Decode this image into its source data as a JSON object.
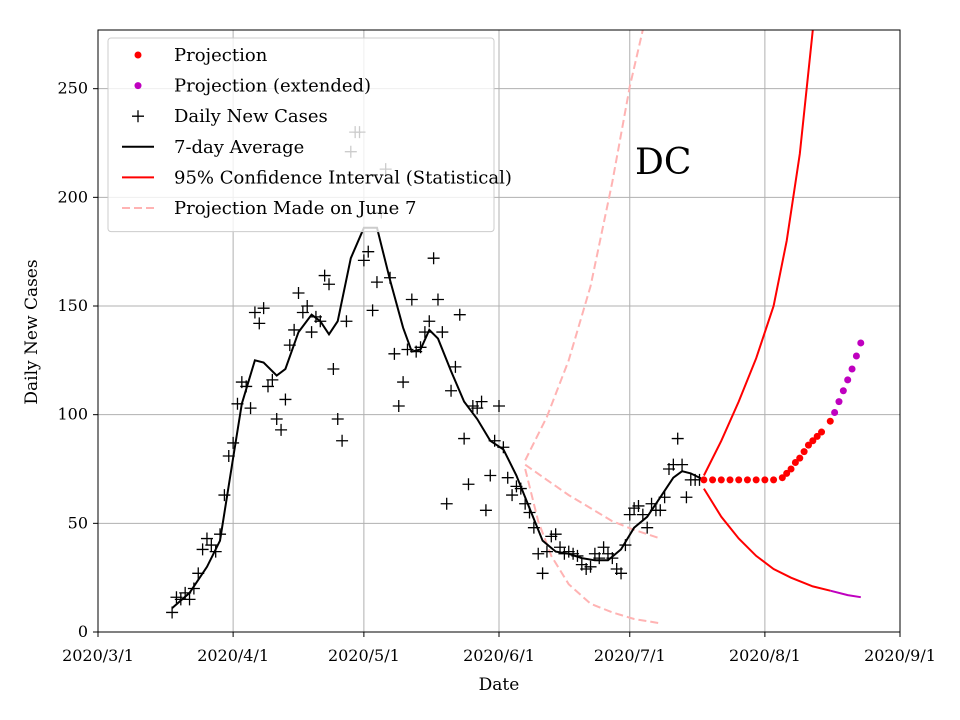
{
  "chart_data": {
    "type": "line",
    "title": "",
    "annotation": "DC",
    "xlabel": "Date",
    "ylabel": "Daily New Cases",
    "x_ticks": [
      "2020/3/1",
      "2020/4/1",
      "2020/5/1",
      "2020/6/1",
      "2020/7/1",
      "2020/8/1",
      "2020/9/1"
    ],
    "y_ticks": [
      0,
      50,
      100,
      150,
      200,
      250
    ],
    "xlim": [
      "2020-03-01",
      "2020-09-01"
    ],
    "ylim": [
      0,
      277
    ],
    "grid": true,
    "legend_position": "top-left",
    "colors": {
      "projection": "#ff0000",
      "projection_extended": "#bf00bf",
      "daily": "#000000",
      "avg": "#000000",
      "ci": "#ff0000",
      "june7": "#ffb3b3",
      "grid": "#b0b0b0"
    },
    "legend": [
      {
        "key": "projection",
        "label": "Projection"
      },
      {
        "key": "projection_extended",
        "label": "Projection (extended)"
      },
      {
        "key": "daily",
        "label": "Daily New Cases"
      },
      {
        "key": "avg",
        "label": "7-day Average"
      },
      {
        "key": "ci",
        "label": "95% Confidence Interval (Statistical)"
      },
      {
        "key": "june7",
        "label": "Projection Made on June 7"
      }
    ],
    "daily_new_cases": [
      [
        "2020-03-18",
        9
      ],
      [
        "2020-03-19",
        16
      ],
      [
        "2020-03-20",
        15
      ],
      [
        "2020-03-21",
        18
      ],
      [
        "2020-03-22",
        15
      ],
      [
        "2020-03-23",
        20
      ],
      [
        "2020-03-24",
        27
      ],
      [
        "2020-03-25",
        38
      ],
      [
        "2020-03-26",
        43
      ],
      [
        "2020-03-27",
        40
      ],
      [
        "2020-03-28",
        37
      ],
      [
        "2020-03-29",
        45
      ],
      [
        "2020-03-30",
        63
      ],
      [
        "2020-03-31",
        81
      ],
      [
        "2020-04-01",
        87
      ],
      [
        "2020-04-02",
        105
      ],
      [
        "2020-04-03",
        115
      ],
      [
        "2020-04-04",
        113
      ],
      [
        "2020-04-05",
        103
      ],
      [
        "2020-04-06",
        147
      ],
      [
        "2020-04-07",
        142
      ],
      [
        "2020-04-08",
        149
      ],
      [
        "2020-04-09",
        113
      ],
      [
        "2020-04-10",
        116
      ],
      [
        "2020-04-11",
        98
      ],
      [
        "2020-04-12",
        93
      ],
      [
        "2020-04-13",
        107
      ],
      [
        "2020-04-14",
        132
      ],
      [
        "2020-04-15",
        139
      ],
      [
        "2020-04-16",
        156
      ],
      [
        "2020-04-17",
        147
      ],
      [
        "2020-04-18",
        150
      ],
      [
        "2020-04-19",
        138
      ],
      [
        "2020-04-20",
        145
      ],
      [
        "2020-04-21",
        143
      ],
      [
        "2020-04-22",
        164
      ],
      [
        "2020-04-23",
        160
      ],
      [
        "2020-04-24",
        121
      ],
      [
        "2020-04-25",
        98
      ],
      [
        "2020-04-26",
        88
      ],
      [
        "2020-04-27",
        143
      ],
      [
        "2020-04-28",
        221
      ],
      [
        "2020-04-29",
        230
      ],
      [
        "2020-04-30",
        230
      ],
      [
        "2020-05-01",
        171
      ],
      [
        "2020-05-02",
        175
      ],
      [
        "2020-05-03",
        148
      ],
      [
        "2020-05-04",
        161
      ],
      [
        "2020-05-05",
        193
      ],
      [
        "2020-05-06",
        213
      ],
      [
        "2020-05-07",
        163
      ],
      [
        "2020-05-08",
        128
      ],
      [
        "2020-05-09",
        104
      ],
      [
        "2020-05-10",
        115
      ],
      [
        "2020-05-11",
        130
      ],
      [
        "2020-05-12",
        153
      ],
      [
        "2020-05-13",
        129
      ],
      [
        "2020-05-14",
        131
      ],
      [
        "2020-05-15",
        138
      ],
      [
        "2020-05-16",
        143
      ],
      [
        "2020-05-17",
        172
      ],
      [
        "2020-05-18",
        153
      ],
      [
        "2020-05-19",
        138
      ],
      [
        "2020-05-20",
        59
      ],
      [
        "2020-05-21",
        111
      ],
      [
        "2020-05-22",
        122
      ],
      [
        "2020-05-23",
        146
      ],
      [
        "2020-05-24",
        89
      ],
      [
        "2020-05-25",
        68
      ],
      [
        "2020-05-26",
        104
      ],
      [
        "2020-05-27",
        103
      ],
      [
        "2020-05-28",
        106
      ],
      [
        "2020-05-29",
        56
      ],
      [
        "2020-05-30",
        72
      ],
      [
        "2020-05-31",
        88
      ],
      [
        "2020-06-01",
        104
      ],
      [
        "2020-06-02",
        85
      ],
      [
        "2020-06-03",
        71
      ],
      [
        "2020-06-04",
        63
      ],
      [
        "2020-06-05",
        67
      ],
      [
        "2020-06-06",
        66
      ],
      [
        "2020-06-07",
        59
      ],
      [
        "2020-06-08",
        55
      ],
      [
        "2020-06-09",
        48
      ],
      [
        "2020-06-10",
        36
      ],
      [
        "2020-06-11",
        27
      ],
      [
        "2020-06-12",
        37
      ],
      [
        "2020-06-13",
        44
      ],
      [
        "2020-06-14",
        45
      ],
      [
        "2020-06-15",
        39
      ],
      [
        "2020-06-16",
        36
      ],
      [
        "2020-06-17",
        37
      ],
      [
        "2020-06-18",
        36
      ],
      [
        "2020-06-19",
        35
      ],
      [
        "2020-06-20",
        31
      ],
      [
        "2020-06-21",
        29
      ],
      [
        "2020-06-22",
        30
      ],
      [
        "2020-06-23",
        36
      ],
      [
        "2020-06-24",
        34
      ],
      [
        "2020-06-25",
        39
      ],
      [
        "2020-06-26",
        36
      ],
      [
        "2020-06-27",
        34
      ],
      [
        "2020-06-28",
        29
      ],
      [
        "2020-06-29",
        27
      ],
      [
        "2020-06-30",
        40
      ],
      [
        "2020-07-01",
        54
      ],
      [
        "2020-07-02",
        57
      ],
      [
        "2020-07-03",
        58
      ],
      [
        "2020-07-04",
        54
      ],
      [
        "2020-07-05",
        48
      ],
      [
        "2020-07-06",
        59
      ],
      [
        "2020-07-07",
        56
      ],
      [
        "2020-07-08",
        56
      ],
      [
        "2020-07-09",
        62
      ],
      [
        "2020-07-10",
        75
      ],
      [
        "2020-07-11",
        77
      ],
      [
        "2020-07-12",
        89
      ],
      [
        "2020-07-13",
        77
      ],
      [
        "2020-07-14",
        62
      ],
      [
        "2020-07-15",
        70
      ],
      [
        "2020-07-16",
        70
      ],
      [
        "2020-07-17",
        70
      ]
    ],
    "seven_day_average": [
      [
        "2020-03-18",
        11
      ],
      [
        "2020-03-22",
        18
      ],
      [
        "2020-03-26",
        30
      ],
      [
        "2020-03-29",
        42
      ],
      [
        "2020-04-01",
        80
      ],
      [
        "2020-04-03",
        105
      ],
      [
        "2020-04-06",
        125
      ],
      [
        "2020-04-08",
        124
      ],
      [
        "2020-04-11",
        118
      ],
      [
        "2020-04-13",
        121
      ],
      [
        "2020-04-16",
        138
      ],
      [
        "2020-04-19",
        146
      ],
      [
        "2020-04-21",
        143
      ],
      [
        "2020-04-23",
        137
      ],
      [
        "2020-04-25",
        143
      ],
      [
        "2020-04-28",
        172
      ],
      [
        "2020-05-01",
        186
      ],
      [
        "2020-05-04",
        186
      ],
      [
        "2020-05-07",
        162
      ],
      [
        "2020-05-10",
        140
      ],
      [
        "2020-05-12",
        129
      ],
      [
        "2020-05-14",
        130
      ],
      [
        "2020-05-16",
        139
      ],
      [
        "2020-05-18",
        135
      ],
      [
        "2020-05-21",
        120
      ],
      [
        "2020-05-24",
        106
      ],
      [
        "2020-05-27",
        98
      ],
      [
        "2020-05-30",
        88
      ],
      [
        "2020-06-02",
        84
      ],
      [
        "2020-06-05",
        72
      ],
      [
        "2020-06-08",
        57
      ],
      [
        "2020-06-11",
        42
      ],
      [
        "2020-06-14",
        37
      ],
      [
        "2020-06-17",
        36
      ],
      [
        "2020-06-20",
        34
      ],
      [
        "2020-06-23",
        33
      ],
      [
        "2020-06-26",
        33
      ],
      [
        "2020-06-29",
        38
      ],
      [
        "2020-07-02",
        48
      ],
      [
        "2020-07-05",
        53
      ],
      [
        "2020-07-08",
        62
      ],
      [
        "2020-07-11",
        71
      ],
      [
        "2020-07-13",
        74
      ],
      [
        "2020-07-15",
        73
      ],
      [
        "2020-07-18",
        70
      ]
    ],
    "projection": [
      [
        "2020-07-18",
        70
      ],
      [
        "2020-07-20",
        70
      ],
      [
        "2020-07-22",
        70
      ],
      [
        "2020-07-24",
        70
      ],
      [
        "2020-07-26",
        70
      ],
      [
        "2020-07-28",
        70
      ],
      [
        "2020-07-30",
        70
      ],
      [
        "2020-08-01",
        70
      ],
      [
        "2020-08-03",
        70
      ],
      [
        "2020-08-05",
        71
      ],
      [
        "2020-08-06",
        73
      ],
      [
        "2020-08-07",
        75
      ],
      [
        "2020-08-08",
        78
      ],
      [
        "2020-08-09",
        80
      ],
      [
        "2020-08-10",
        83
      ],
      [
        "2020-08-11",
        86
      ],
      [
        "2020-08-12",
        88
      ],
      [
        "2020-08-13",
        90
      ],
      [
        "2020-08-14",
        92
      ],
      [
        "2020-08-16",
        97
      ]
    ],
    "projection_extended": [
      [
        "2020-08-17",
        101
      ],
      [
        "2020-08-18",
        106
      ],
      [
        "2020-08-19",
        111
      ],
      [
        "2020-08-20",
        116
      ],
      [
        "2020-08-21",
        121
      ],
      [
        "2020-08-22",
        127
      ],
      [
        "2020-08-23",
        133
      ]
    ],
    "ci_upper": [
      [
        "2020-07-18",
        72
      ],
      [
        "2020-07-22",
        88
      ],
      [
        "2020-07-26",
        106
      ],
      [
        "2020-07-30",
        126
      ],
      [
        "2020-08-03",
        150
      ],
      [
        "2020-08-06",
        180
      ],
      [
        "2020-08-09",
        220
      ],
      [
        "2020-08-12",
        277
      ]
    ],
    "ci_lower": [
      [
        "2020-07-18",
        66
      ],
      [
        "2020-07-22",
        53
      ],
      [
        "2020-07-26",
        43
      ],
      [
        "2020-07-30",
        35
      ],
      [
        "2020-08-03",
        29
      ],
      [
        "2020-08-07",
        25
      ],
      [
        "2020-08-12",
        21
      ],
      [
        "2020-08-16",
        19
      ]
    ],
    "ci_lower_extended": [
      [
        "2020-08-16",
        19
      ],
      [
        "2020-08-20",
        17
      ],
      [
        "2020-08-23",
        16
      ]
    ],
    "june7_upper": [
      [
        "2020-06-07",
        79
      ],
      [
        "2020-06-12",
        99
      ],
      [
        "2020-06-17",
        125
      ],
      [
        "2020-06-22",
        159
      ],
      [
        "2020-06-27",
        207
      ],
      [
        "2020-07-01",
        251
      ],
      [
        "2020-07-04",
        277
      ]
    ],
    "june7_mid": [
      [
        "2020-06-07",
        77
      ],
      [
        "2020-06-12",
        70
      ],
      [
        "2020-06-17",
        63
      ],
      [
        "2020-06-22",
        57
      ],
      [
        "2020-06-27",
        51
      ],
      [
        "2020-07-02",
        47
      ],
      [
        "2020-07-08",
        43
      ]
    ],
    "june7_lower": [
      [
        "2020-06-07",
        75
      ],
      [
        "2020-06-10",
        51
      ],
      [
        "2020-06-13",
        35
      ],
      [
        "2020-06-17",
        22
      ],
      [
        "2020-06-22",
        13
      ],
      [
        "2020-06-27",
        9
      ],
      [
        "2020-07-02",
        6
      ],
      [
        "2020-07-08",
        4
      ]
    ]
  }
}
